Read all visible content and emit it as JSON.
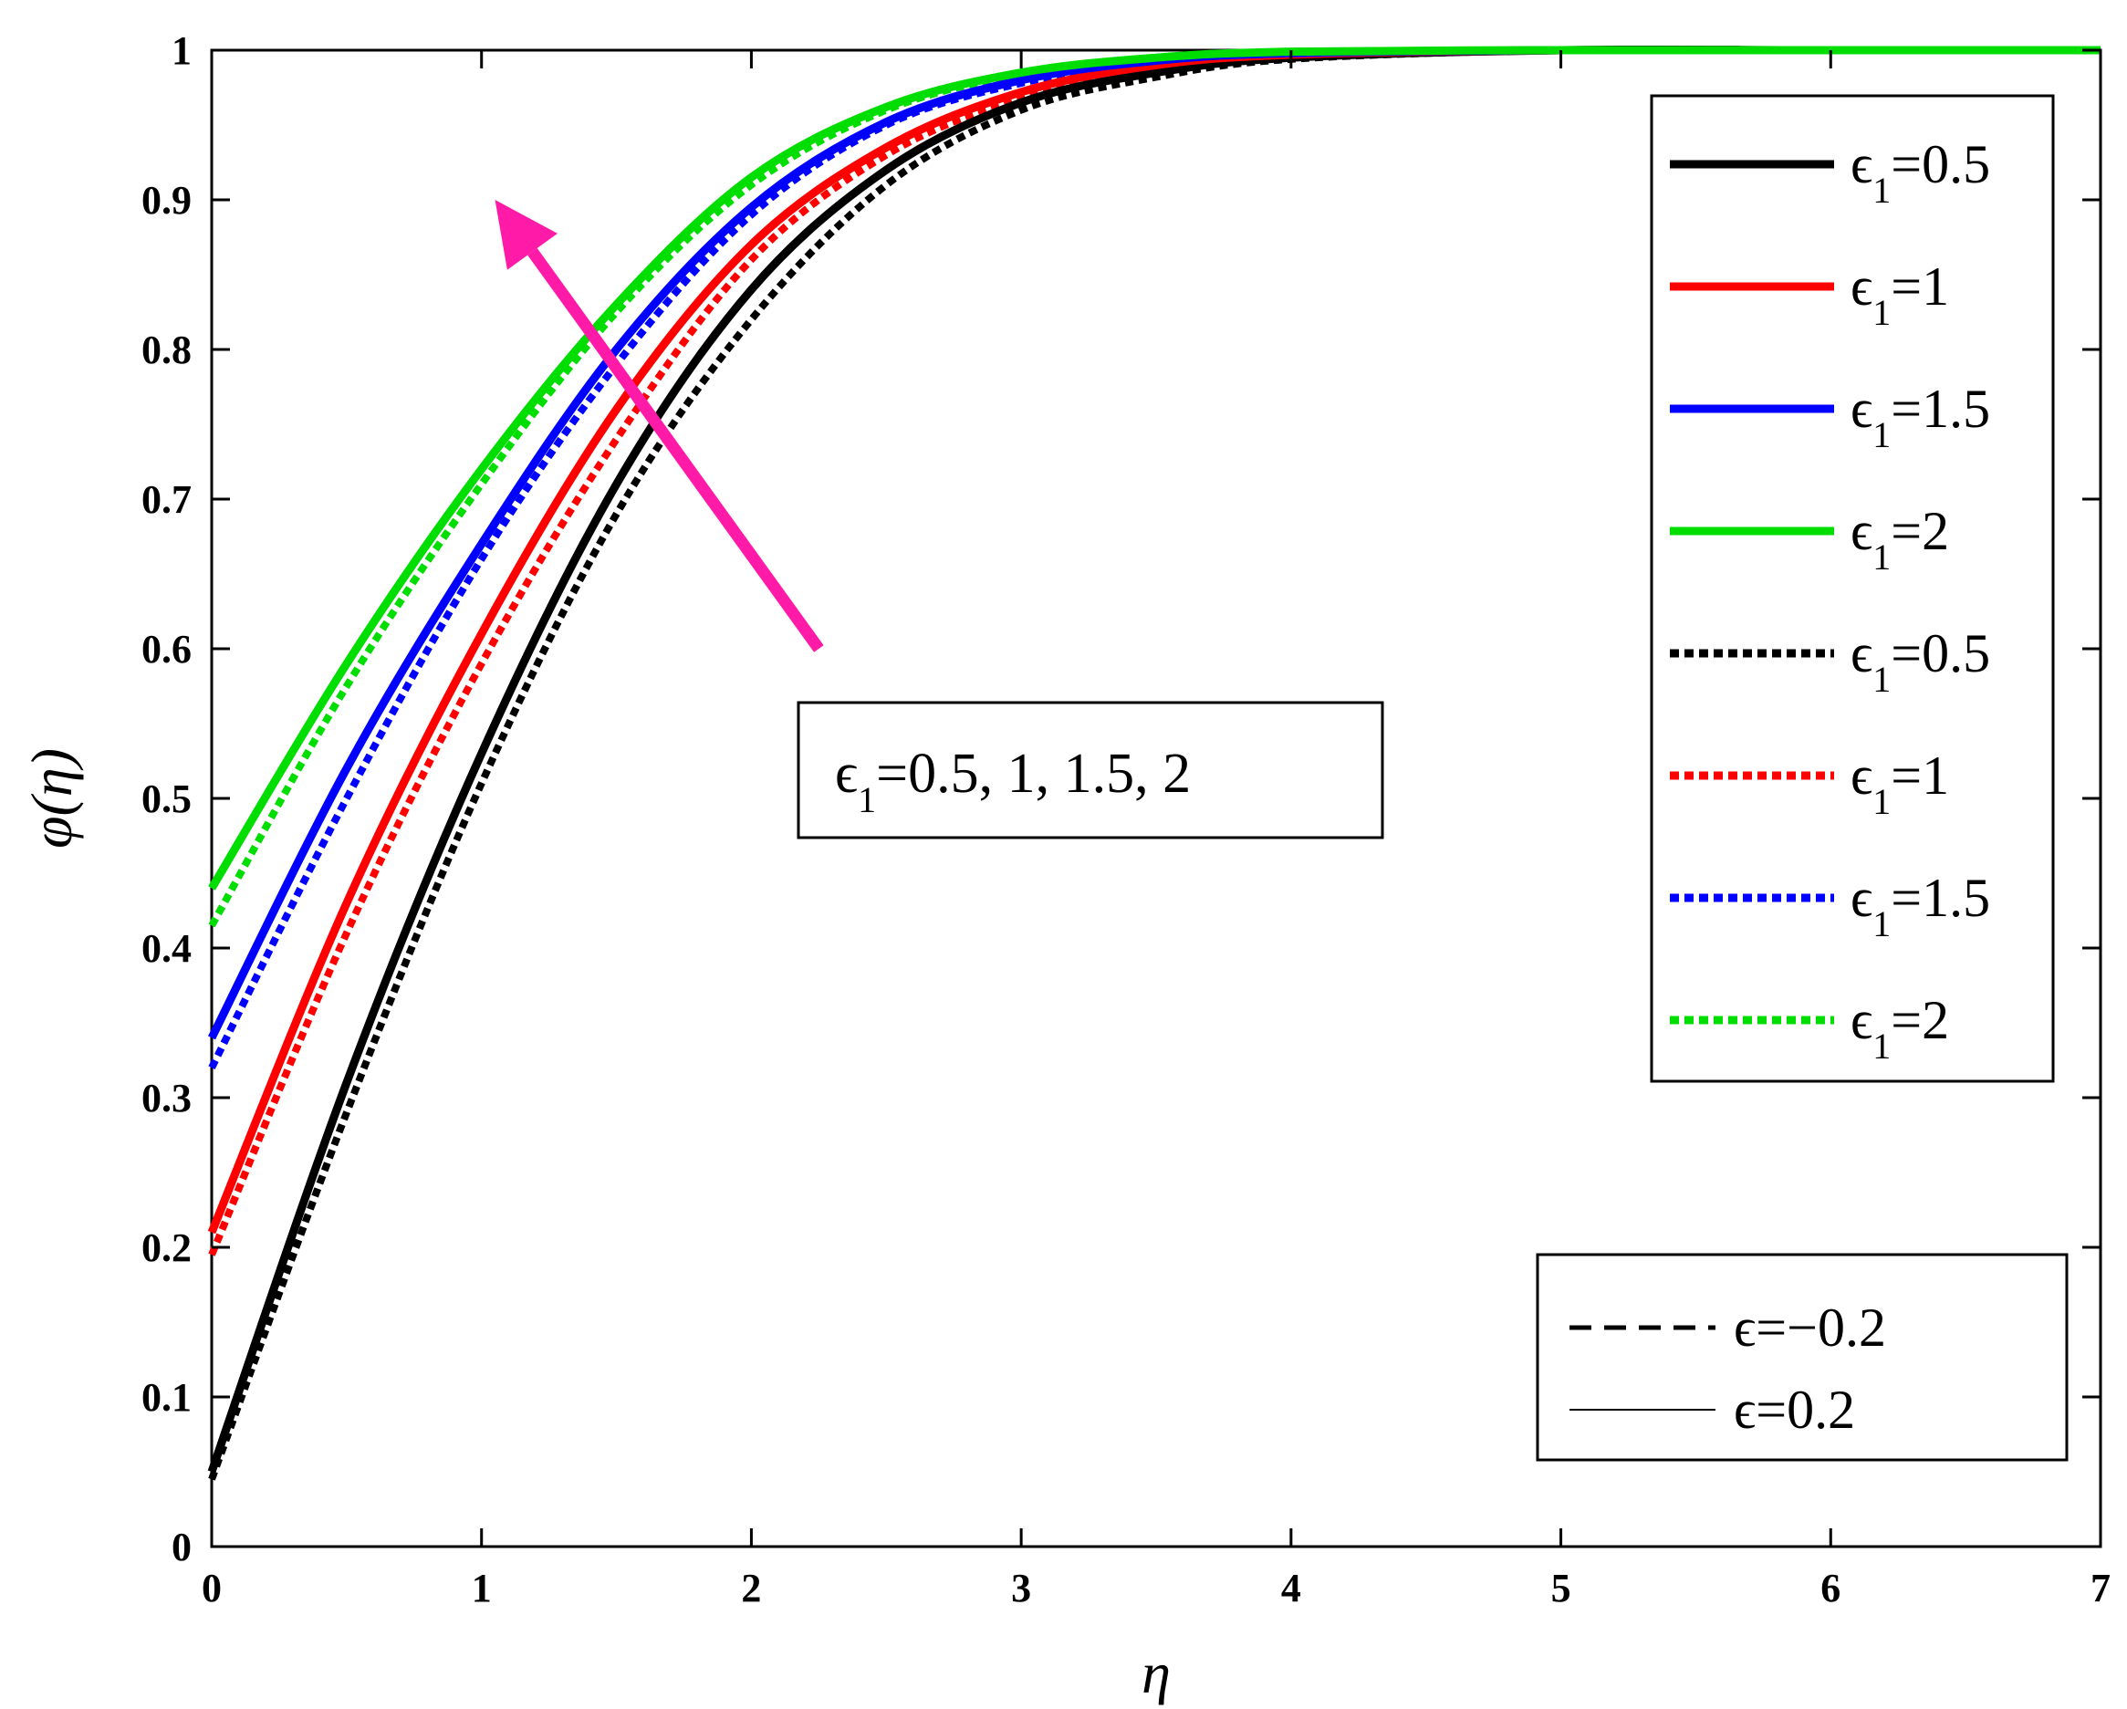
{
  "chart_data": {
    "type": "line",
    "xlabel": "η",
    "ylabel": "φ(η)",
    "xlim": [
      0,
      7
    ],
    "ylim": [
      0,
      1
    ],
    "xticks": [
      "0",
      "1",
      "2",
      "3",
      "4",
      "5",
      "6",
      "7"
    ],
    "yticks": [
      "0",
      "0.1",
      "0.2",
      "0.3",
      "0.4",
      "0.5",
      "0.6",
      "0.7",
      "0.8",
      "0.9",
      "1"
    ],
    "grid": false,
    "x": [
      0,
      0.5,
      1,
      1.5,
      2,
      2.5,
      3,
      3.5,
      4,
      5,
      6,
      7
    ],
    "series": [
      {
        "name": "ϵ1=0.5",
        "color": "#000000",
        "style": "solid",
        "values": [
          0.05,
          0.31,
          0.53,
          0.71,
          0.84,
          0.92,
          0.965,
          0.985,
          0.995,
          1,
          1,
          1
        ]
      },
      {
        "name": "ϵ1=1",
        "color": "#ff0000",
        "style": "solid",
        "values": [
          0.21,
          0.43,
          0.61,
          0.76,
          0.87,
          0.935,
          0.972,
          0.99,
          0.997,
          1,
          1,
          1
        ]
      },
      {
        "name": "ϵ1=1.5",
        "color": "#0000ff",
        "style": "solid",
        "values": [
          0.34,
          0.52,
          0.67,
          0.8,
          0.895,
          0.952,
          0.98,
          0.993,
          0.998,
          1,
          1,
          1
        ]
      },
      {
        "name": "ϵ1=2",
        "color": "#00dd00",
        "style": "solid",
        "values": [
          0.44,
          0.59,
          0.72,
          0.83,
          0.915,
          0.962,
          0.985,
          0.995,
          0.999,
          1,
          1,
          1
        ]
      },
      {
        "name": "ϵ1=0.5",
        "color": "#000000",
        "style": "dotted",
        "values": [
          0.045,
          0.29,
          0.51,
          0.69,
          0.82,
          0.91,
          0.96,
          0.982,
          0.994,
          1,
          1,
          1
        ]
      },
      {
        "name": "ϵ1=1",
        "color": "#ff0000",
        "style": "dotted",
        "values": [
          0.195,
          0.41,
          0.59,
          0.74,
          0.86,
          0.93,
          0.968,
          0.988,
          0.996,
          1,
          1,
          1
        ]
      },
      {
        "name": "ϵ1=1.5",
        "color": "#0000ff",
        "style": "dotted",
        "values": [
          0.32,
          0.5,
          0.66,
          0.79,
          0.89,
          0.95,
          0.978,
          0.992,
          0.998,
          1,
          1,
          1
        ]
      },
      {
        "name": "ϵ1=2",
        "color": "#00dd00",
        "style": "dotted",
        "values": [
          0.415,
          0.575,
          0.71,
          0.825,
          0.91,
          0.96,
          0.984,
          0.995,
          0.999,
          1,
          1,
          1
        ]
      }
    ],
    "legend": {
      "placement": "top-right",
      "entries": [
        {
          "base": "ϵ",
          "sub": "1",
          "rest": "=0.5",
          "color": "#000000",
          "style": "solid"
        },
        {
          "base": "ϵ",
          "sub": "1",
          "rest": "=1",
          "color": "#ff0000",
          "style": "solid"
        },
        {
          "base": "ϵ",
          "sub": "1",
          "rest": "=1.5",
          "color": "#0000ff",
          "style": "solid"
        },
        {
          "base": "ϵ",
          "sub": "1",
          "rest": "=2",
          "color": "#00dd00",
          "style": "solid"
        },
        {
          "base": "ϵ",
          "sub": "1",
          "rest": "=0.5",
          "color": "#000000",
          "style": "dotted"
        },
        {
          "base": "ϵ",
          "sub": "1",
          "rest": "=1",
          "color": "#ff0000",
          "style": "dotted"
        },
        {
          "base": "ϵ",
          "sub": "1",
          "rest": "=1.5",
          "color": "#0000ff",
          "style": "dotted"
        },
        {
          "base": "ϵ",
          "sub": "1",
          "rest": "=2",
          "color": "#00dd00",
          "style": "dotted"
        }
      ]
    },
    "style_legend": {
      "placement": "bottom-right",
      "entries": [
        {
          "label": "ϵ=−0.2",
          "style": "dashed"
        },
        {
          "label": "ϵ=0.2",
          "style": "solid"
        }
      ]
    },
    "annotation": {
      "base": "ϵ",
      "sub": "1",
      "rest": "=0.5, 1, 1.5, 2",
      "arrow_color": "#ff1aa8",
      "arrow_from": [
        2.25,
        0.6
      ],
      "arrow_to": [
        1.05,
        0.9
      ]
    }
  }
}
